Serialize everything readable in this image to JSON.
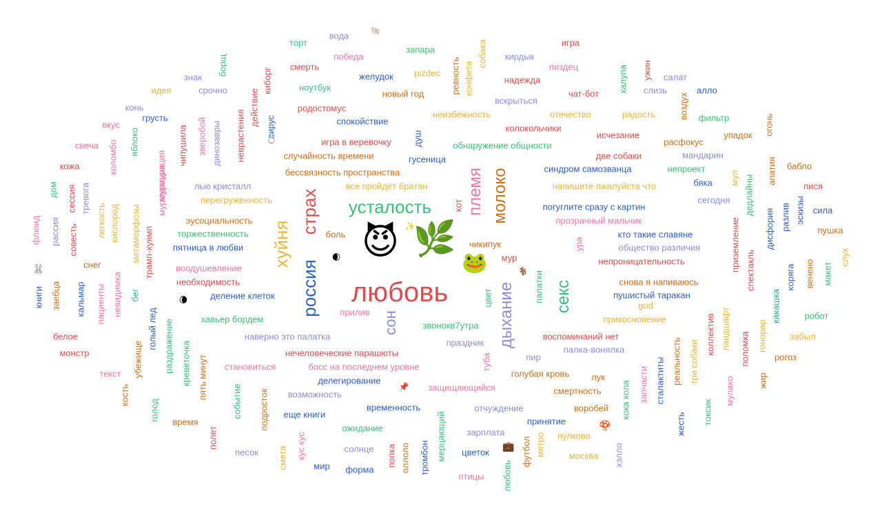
{
  "colors": {
    "red": "#d94f4f",
    "pink": "#e879a6",
    "orange": "#c9711c",
    "yellow": "#e9b63d",
    "green": "#3cbf7a",
    "teal": "#2fa89a",
    "blue": "#2f5fbf",
    "lavender": "#8c8fd6",
    "purple": "#7b5fd0"
  },
  "words": [
    "любовь",
    "усталость",
    "страх",
    "россия",
    "хуйня",
    "племя",
    "молоко",
    "дыхание",
    "секс",
    "сон",
    "вода",
    "торт",
    "запара",
    "игра",
    "победа",
    "смерть",
    "желудок",
    "pizdec",
    "ревность",
    "конфета",
    "собака",
    "кирдык",
    "пиздец",
    "надежда",
    "ужин",
    "халупа",
    "салат",
    "знак",
    "борщ",
    "идея",
    "срочно",
    "киборг",
    "ноутбук",
    "новый год",
    "чат-бот",
    "слизь",
    "алло",
    "воздух",
    "конь",
    "грусть",
    "вкус",
    "родостомус",
    "вскрыться",
    "неизбежность",
    "отечество",
    "радость",
    "фильтр",
    "огонь",
    "спокойствие",
    "колокольчики",
    "исчезание",
    "упадок",
    "свеча",
    "яблоко",
    "коломбо",
    "чипушила",
    "зверобой",
    "динозавры",
    "невраcтения",
    "действие",
    "вирус",
    "игра в веревочку",
    "душ",
    "обнаружение общности",
    "две собаки",
    "расфокус",
    "мандарин",
    "кожа",
    "мурмурация",
    "случайность времени",
    "гусеница",
    "бессвязность пространства",
    "синдром самозванца",
    "непроект",
    "бабло",
    "апатия",
    "дом",
    "сессия",
    "тревога",
    "лью кристалл",
    "все пройдёт братан",
    "напишите пжалуйста что",
    "бяка",
    "мул",
    "дедлайны",
    "пися",
    "флюид",
    "рассия",
    "легкость",
    "кислород",
    "метаморфозы",
    "мурмурация",
    "перегруженность",
    "кот",
    "погуглите сразу с картин",
    "сегодня",
    "разлив",
    "эскизы",
    "сила",
    "совесть",
    "эусоциальность",
    "боль",
    "прозрачный мальчик",
    "дисфория",
    "пушка",
    "торжественность",
    "кто такие славяне",
    "приземление",
    "пятница в любви",
    "чикипук",
    "общество различия",
    "ура",
    "снег",
    "трамп-хуямп",
    "воодушевление",
    "мур",
    "непроницательность",
    "спектакль",
    "слух",
    "необходимость",
    "палатки",
    "снова я напиваюсь",
    "коряга",
    "венено",
    "макет",
    "книги",
    "заебца",
    "кальмар",
    "пациенты",
    "невидимка",
    "бег",
    "деление клеток",
    "пушистый таракан",
    "god",
    "какашка",
    "прилив",
    "цвет",
    "прикосновение",
    "робот",
    "хавьер бордем",
    "звонокв7утра",
    "голый лед",
    "наверно это палатка",
    "праздник",
    "воспоминаний нет",
    "коллектив",
    "ландшафт",
    "гонорар",
    "забыл",
    "белое",
    "раздражение",
    "нечеловеческие парашюты",
    "палка-вонялка",
    "реальность",
    "поломка",
    "рогоз",
    "убежище",
    "креветочка",
    "пир",
    "три собаки",
    "монстр",
    "пять минут",
    "становиться",
    "босс на последнем уровне",
    "туба",
    "голубая кровь",
    "лук",
    "запчасти",
    "мулако",
    "жир",
    "текст",
    "делегирование",
    "защищающийся",
    "смертность",
    "кока кола",
    "сталактиты",
    "событие",
    "голод",
    "кость",
    "возможность",
    "временность",
    "отчуждение",
    "воробей",
    "токсик",
    "время",
    "подросток",
    "еще книги",
    "принятие",
    "жесть",
    "полет",
    "кус кус",
    "ожидание",
    "мерцающий",
    "зарплата",
    "пулково",
    "песок",
    "солнце",
    "цветок",
    "футбол",
    "метро",
    "москва",
    "хэлло",
    "смета",
    "мир",
    "форма",
    "попка",
    "оллоло",
    "тромбон",
    "птицы",
    "любовь"
  ],
  "icons": [
    "shell-icon",
    "ring-icon",
    "smiling-devil-icon",
    "herb-icon",
    "frog-icon",
    "sparkles-icon",
    "moon-icon",
    "goat-icon",
    "briefcase-icon",
    "mushroom-icon",
    "rabbit-icon",
    "pin-icon",
    "bird-icon"
  ]
}
